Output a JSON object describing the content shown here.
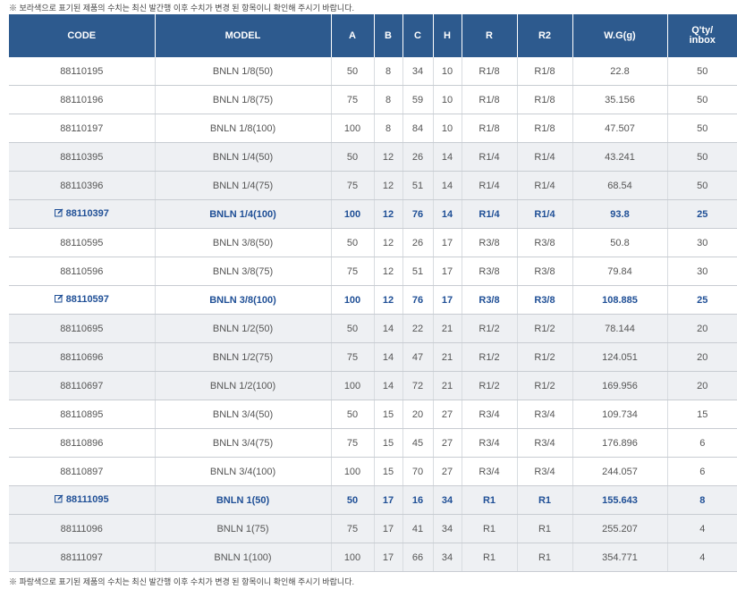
{
  "top_note": "※ 보라색으로 표기된 제품의 수치는 최신 발간행 이후 수치가 변경 된 항목이니 확인해 주시기 바랍니다.",
  "table": {
    "headers": [
      "CODE",
      "MODEL",
      "A",
      "B",
      "C",
      "H",
      "R",
      "R2",
      "W.G(g)",
      "Q'ty/\ninbox"
    ],
    "rows": [
      [
        "88110195",
        "BNLN 1/8(50)",
        "50",
        "8",
        "34",
        "10",
        "R1/8",
        "R1/8",
        "22.8",
        "50"
      ],
      [
        "88110196",
        "BNLN 1/8(75)",
        "75",
        "8",
        "59",
        "10",
        "R1/8",
        "R1/8",
        "35.156",
        "50"
      ],
      [
        "88110197",
        "BNLN 1/8(100)",
        "100",
        "8",
        "84",
        "10",
        "R1/8",
        "R1/8",
        "47.507",
        "50"
      ],
      [
        "88110395",
        "BNLN 1/4(50)",
        "50",
        "12",
        "26",
        "14",
        "R1/4",
        "R1/4",
        "43.241",
        "50"
      ],
      [
        "88110396",
        "BNLN 1/4(75)",
        "75",
        "12",
        "51",
        "14",
        "R1/4",
        "R1/4",
        "68.54",
        "50"
      ],
      [
        "88110397",
        "BNLN 1/4(100)",
        "100",
        "12",
        "76",
        "14",
        "R1/4",
        "R1/4",
        "93.8",
        "25"
      ],
      [
        "88110595",
        "BNLN 3/8(50)",
        "50",
        "12",
        "26",
        "17",
        "R3/8",
        "R3/8",
        "50.8",
        "30"
      ],
      [
        "88110596",
        "BNLN 3/8(75)",
        "75",
        "12",
        "51",
        "17",
        "R3/8",
        "R3/8",
        "79.84",
        "30"
      ],
      [
        "88110597",
        "BNLN 3/8(100)",
        "100",
        "12",
        "76",
        "17",
        "R3/8",
        "R3/8",
        "108.885",
        "25"
      ],
      [
        "88110695",
        "BNLN 1/2(50)",
        "50",
        "14",
        "22",
        "21",
        "R1/2",
        "R1/2",
        "78.144",
        "20"
      ],
      [
        "88110696",
        "BNLN 1/2(75)",
        "75",
        "14",
        "47",
        "21",
        "R1/2",
        "R1/2",
        "124.051",
        "20"
      ],
      [
        "88110697",
        "BNLN 1/2(100)",
        "100",
        "14",
        "72",
        "21",
        "R1/2",
        "R1/2",
        "169.956",
        "20"
      ],
      [
        "88110895",
        "BNLN 3/4(50)",
        "50",
        "15",
        "20",
        "27",
        "R3/4",
        "R3/4",
        "109.734",
        "15"
      ],
      [
        "88110896",
        "BNLN 3/4(75)",
        "75",
        "15",
        "45",
        "27",
        "R3/4",
        "R3/4",
        "176.896",
        "6"
      ],
      [
        "88110897",
        "BNLN 3/4(100)",
        "100",
        "15",
        "70",
        "27",
        "R3/4",
        "R3/4",
        "244.057",
        "6"
      ],
      [
        "88111095",
        "BNLN 1(50)",
        "50",
        "17",
        "16",
        "34",
        "R1",
        "R1",
        "155.643",
        "8"
      ],
      [
        "88111096",
        "BNLN 1(75)",
        "75",
        "17",
        "41",
        "34",
        "R1",
        "R1",
        "255.207",
        "4"
      ],
      [
        "88111097",
        "BNLN 1(100)",
        "100",
        "17",
        "66",
        "34",
        "R1",
        "R1",
        "354.771",
        "4"
      ]
    ],
    "emphasized_rows": [
      5,
      8,
      15
    ]
  },
  "bottom_note": "※ 파랑색으로 표기된 제품의 수치는 최신 발간행 이후 수치가 변경 된 항목이니 확인해 주시기 바랍니다."
}
